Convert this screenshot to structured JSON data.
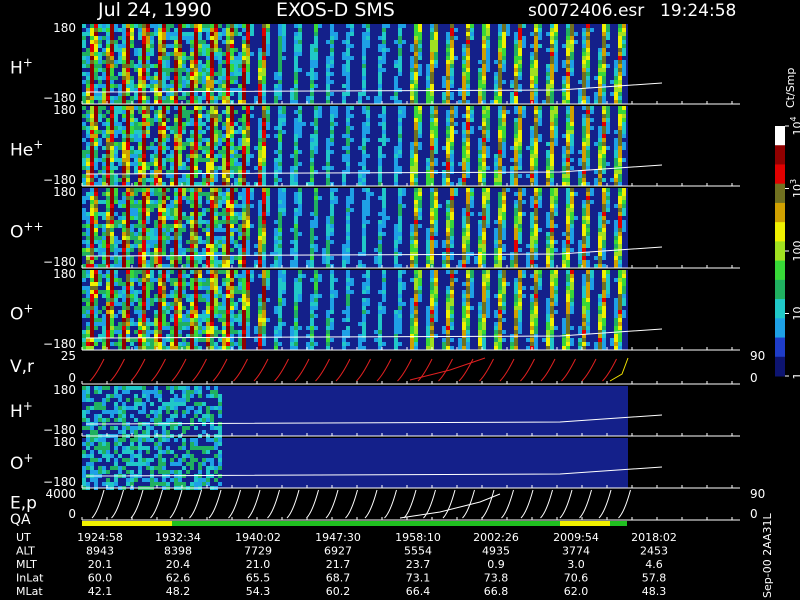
{
  "header": {
    "date": "Jul 24, 1990",
    "instrument": "EXOS-D SMS",
    "filename": "s0072406.esr",
    "time": "19:24:58"
  },
  "side_label": "Sep-00 2AA31L",
  "chart_data": {
    "type": "heatmap",
    "panels": [
      {
        "label": "H",
        "sup": "+",
        "y_top": "180",
        "y_bottom": "−180",
        "style": "spin"
      },
      {
        "label": "He",
        "sup": "+",
        "y_top": "180",
        "y_bottom": "−180",
        "style": "spin"
      },
      {
        "label": "O",
        "sup": "++",
        "y_top": "180",
        "y_bottom": "−180",
        "style": "spin"
      },
      {
        "label": "O",
        "sup": "+",
        "y_top": "180",
        "y_bottom": "−180",
        "style": "spin"
      },
      {
        "label": "V,r",
        "sup": "",
        "y_top": "25",
        "y_bottom": "0",
        "right_top": "90",
        "right_bottom": "0",
        "style": "steps"
      },
      {
        "label": "H",
        "sup": "+",
        "y_top": "180",
        "y_bottom": "−180",
        "style": "noise"
      },
      {
        "label": "O",
        "sup": "+",
        "y_top": "180",
        "y_bottom": "−180",
        "style": "noise"
      },
      {
        "label": "E,p",
        "sup": "",
        "y_top": "4000",
        "y_bottom": "0",
        "right_top": "90",
        "right_bottom": "0",
        "style": "sweeps"
      }
    ],
    "qa_label": "QA",
    "colorbar": {
      "unit": "Ct/Smp",
      "ticks": [
        {
          "label": "1",
          "value": 1
        },
        {
          "label": "10",
          "value": 10
        },
        {
          "label": "100",
          "value": 100
        },
        {
          "label": "10",
          "sup": "3",
          "value": 1000
        },
        {
          "label": "10",
          "sup": "4",
          "value": 10000
        }
      ],
      "colors": [
        "#0d1470",
        "#1e3cc8",
        "#1ea0e6",
        "#20c8c8",
        "#20b060",
        "#38d838",
        "#a0e020",
        "#f0f000",
        "#d0a000",
        "#707020",
        "#e00000",
        "#900000",
        "#ffffff"
      ]
    },
    "table": {
      "rows": [
        {
          "name": "UT",
          "values": [
            "1924:58",
            "1932:34",
            "1940:02",
            "1947:30",
            "1958:10",
            "2002:26",
            "2009:54",
            "2018:02"
          ]
        },
        {
          "name": "ALT",
          "values": [
            "8943",
            "8398",
            "7729",
            "6927",
            "5554",
            "4935",
            "3774",
            "2453"
          ]
        },
        {
          "name": "MLT",
          "values": [
            "20.1",
            "20.4",
            "21.0",
            "21.7",
            "23.7",
            "0.9",
            "3.0",
            "4.6"
          ]
        },
        {
          "name": "InLat",
          "values": [
            "60.0",
            "62.6",
            "65.5",
            "68.7",
            "73.1",
            "73.8",
            "70.6",
            "57.8"
          ]
        },
        {
          "name": "MLat",
          "values": [
            "42.1",
            "48.2",
            "54.3",
            "60.2",
            "66.4",
            "66.8",
            "62.0",
            "48.3"
          ]
        }
      ]
    }
  }
}
